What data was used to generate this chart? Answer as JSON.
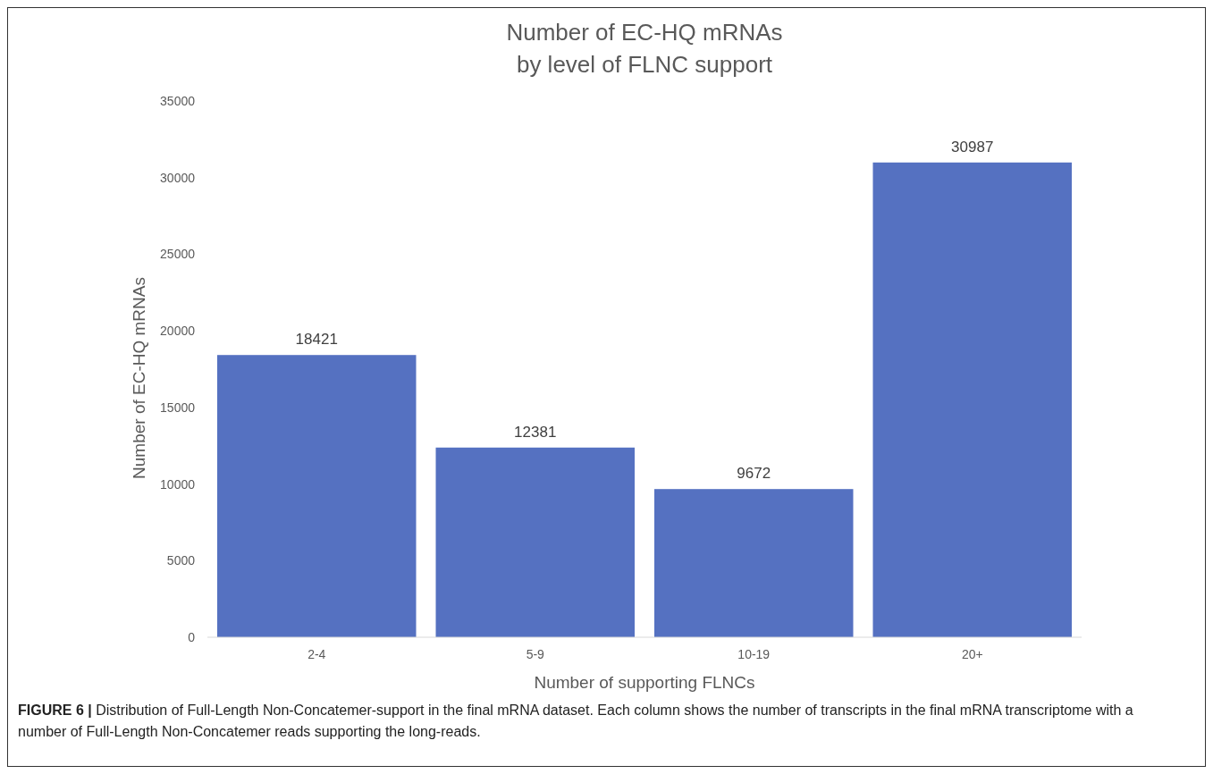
{
  "chart_data": {
    "type": "bar",
    "title": "Number of EC-HQ mRNAs\nby level of FLNC support",
    "xlabel": "Number of supporting FLNCs",
    "ylabel": "Number of EC-HQ mRNAs",
    "categories": [
      "2-4",
      "5-9",
      "10-19",
      "20+"
    ],
    "values": [
      18421,
      12381,
      9672,
      30987
    ],
    "color": "#5571c1",
    "ylim": [
      0,
      35000
    ],
    "yticks": [
      0,
      5000,
      10000,
      15000,
      20000,
      25000,
      30000,
      35000
    ],
    "grid": false,
    "data_labels": true,
    "annotations": [
      "FIGURE 6 | Distribution of Full-Length Non-Concatemer-support in the final mRNA dataset. Each column shows the number of transcripts in the final mRNA transcriptome with a number of Full-Length Non-Concatemer reads supporting the long-reads."
    ]
  }
}
